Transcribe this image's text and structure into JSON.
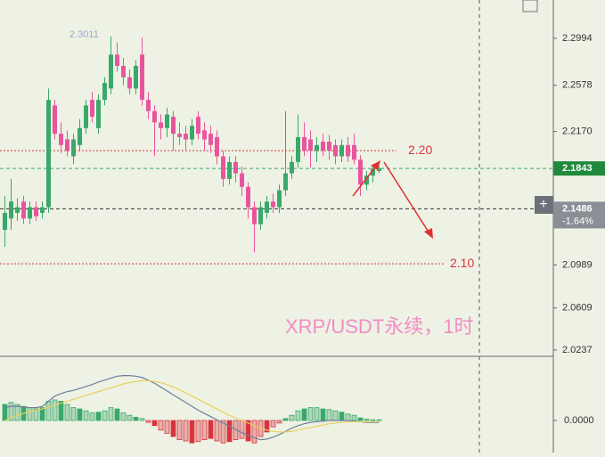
{
  "chart_data": [
    {
      "type": "candlestick",
      "title": "XRP/USDT永续，1时",
      "up_color": "#3aa86a",
      "down_color": "#e8559e",
      "ylim": [
        2.0181,
        2.3333
      ],
      "yticks": [
        2.2994,
        2.2578,
        {
          "value": 2.217,
          "label": "2.2170"
        },
        2.0989,
        2.0609,
        2.0237
      ],
      "high_label": 2.3011,
      "levels": [
        {
          "value": 2.2,
          "label": "2.20",
          "color": "#d9343e"
        },
        {
          "value": 2.1,
          "label": "2.10",
          "color": "#d9343e"
        }
      ],
      "price_tags": [
        {
          "value": 2.1843,
          "color": "#1f8a3c"
        },
        {
          "value": 2.1486,
          "color": "#8a8f96",
          "change": {
            "value": -1.64,
            "label": "-1.64%"
          }
        }
      ],
      "ohlc": [
        [
          2.13,
          2.16,
          2.115,
          2.145
        ],
        [
          2.14,
          2.175,
          2.13,
          2.155
        ],
        [
          2.145,
          2.158,
          2.138,
          2.15
        ],
        [
          2.155,
          2.16,
          2.135,
          2.14
        ],
        [
          2.14,
          2.155,
          2.135,
          2.15
        ],
        [
          2.15,
          2.155,
          2.138,
          2.142
        ],
        [
          2.145,
          2.155,
          2.14,
          2.15
        ],
        [
          2.15,
          2.255,
          2.145,
          2.245
        ],
        [
          2.24,
          2.245,
          2.21,
          2.215
        ],
        [
          2.215,
          2.225,
          2.198,
          2.205
        ],
        [
          2.21,
          2.218,
          2.195,
          2.2
        ],
        [
          2.195,
          2.215,
          2.188,
          2.21
        ],
        [
          2.205,
          2.228,
          2.2,
          2.22
        ],
        [
          2.22,
          2.245,
          2.215,
          2.24
        ],
        [
          2.245,
          2.252,
          2.225,
          2.23
        ],
        [
          2.22,
          2.25,
          2.215,
          2.245
        ],
        [
          2.245,
          2.265,
          2.24,
          2.26
        ],
        [
          2.255,
          2.3011,
          2.25,
          2.285
        ],
        [
          2.285,
          2.296,
          2.27,
          2.275
        ],
        [
          2.275,
          2.282,
          2.258,
          2.265
        ],
        [
          2.265,
          2.272,
          2.25,
          2.255
        ],
        [
          2.255,
          2.28,
          2.25,
          2.275
        ],
        [
          2.285,
          2.3,
          2.24,
          2.245
        ],
        [
          2.245,
          2.252,
          2.228,
          2.235
        ],
        [
          2.235,
          2.24,
          2.195,
          2.225
        ],
        [
          2.225,
          2.232,
          2.21,
          2.22
        ],
        [
          2.22,
          2.238,
          2.212,
          2.232
        ],
        [
          2.23,
          2.235,
          2.2,
          2.215
        ],
        [
          2.215,
          2.225,
          2.205,
          2.212
        ],
        [
          2.215,
          2.222,
          2.2,
          2.21
        ],
        [
          2.21,
          2.228,
          2.205,
          2.222
        ],
        [
          2.23,
          2.235,
          2.21,
          2.215
        ],
        [
          2.218,
          2.225,
          2.2,
          2.21
        ],
        [
          2.215,
          2.222,
          2.198,
          2.205
        ],
        [
          2.212,
          2.218,
          2.188,
          2.195
        ],
        [
          2.195,
          2.2,
          2.168,
          2.175
        ],
        [
          2.175,
          2.195,
          2.17,
          2.19
        ],
        [
          2.19,
          2.195,
          2.172,
          2.18
        ],
        [
          2.18,
          2.186,
          2.16,
          2.168
        ],
        [
          2.168,
          2.172,
          2.14,
          2.15
        ],
        [
          2.15,
          2.155,
          2.11,
          2.135
        ],
        [
          2.135,
          2.155,
          2.13,
          2.15
        ],
        [
          2.145,
          2.16,
          2.14,
          2.155
        ],
        [
          2.155,
          2.162,
          2.145,
          2.15
        ],
        [
          2.15,
          2.17,
          2.145,
          2.165
        ],
        [
          2.165,
          2.235,
          2.16,
          2.18
        ],
        [
          2.18,
          2.195,
          2.175,
          2.19
        ],
        [
          2.19,
          2.232,
          2.185,
          2.212
        ],
        [
          2.212,
          2.225,
          2.195,
          2.2
        ],
        [
          2.21,
          2.218,
          2.185,
          2.2
        ],
        [
          2.2,
          2.212,
          2.19,
          2.205
        ],
        [
          2.208,
          2.215,
          2.195,
          2.2
        ],
        [
          2.208,
          2.214,
          2.192,
          2.2
        ],
        [
          2.205,
          2.21,
          2.188,
          2.195
        ],
        [
          2.195,
          2.21,
          2.19,
          2.205
        ],
        [
          2.205,
          2.212,
          2.19,
          2.195
        ],
        [
          2.205,
          2.215,
          2.188,
          2.192
        ],
        [
          2.192,
          2.196,
          2.16,
          2.17
        ],
        [
          2.17,
          2.182,
          2.165,
          2.178
        ],
        [
          2.178,
          2.188,
          2.172,
          2.184
        ],
        [
          2.182,
          2.186,
          2.18,
          2.1843
        ]
      ]
    },
    {
      "type": "macd",
      "ylim": [
        -0.005,
        0.01
      ],
      "yticks": [
        {
          "value": 0,
          "label": "0.0000"
        }
      ],
      "up_color": "#3aa86a",
      "down_color": "#d9343e",
      "histogram": [
        0.0025,
        0.0028,
        0.0025,
        0.0022,
        0.002,
        0.0018,
        0.002,
        0.003,
        0.0032,
        0.003,
        0.0025,
        0.002,
        0.0018,
        0.0015,
        0.0012,
        0.0013,
        0.0015,
        0.002,
        0.0018,
        0.0012,
        0.0008,
        0.0005,
        0.0003,
        -0.0003,
        -0.0008,
        -0.0015,
        -0.002,
        -0.0025,
        -0.003,
        -0.0032,
        -0.0035,
        -0.0033,
        -0.003,
        -0.0028,
        -0.0032,
        -0.0035,
        -0.0033,
        -0.003,
        -0.0028,
        -0.0032,
        -0.0035,
        -0.0025,
        -0.0018,
        -0.001,
        -0.0004,
        0.0003,
        0.0008,
        0.0015,
        0.0018,
        0.002,
        0.002,
        0.0018,
        0.0017,
        0.0015,
        0.0013,
        0.001,
        0.0008,
        0.0004,
        0.0002,
        0.0001,
        0.0001
      ],
      "series": [
        {
          "color": "#6f7f9c",
          "values": [
            0.002,
            0.0022,
            0.0022,
            0.0021,
            0.002,
            0.002,
            0.0022,
            0.003,
            0.0038,
            0.0042,
            0.0045,
            0.0047,
            0.005,
            0.0053,
            0.0056,
            0.006,
            0.0063,
            0.0066,
            0.0069,
            0.007,
            0.007,
            0.0069,
            0.0067,
            0.0063,
            0.0058,
            0.0052,
            0.0046,
            0.004,
            0.0034,
            0.0028,
            0.0022,
            0.0016,
            0.0011,
            0.0006,
            0.0001,
            -0.0004,
            -0.0009,
            -0.0014,
            -0.0019,
            -0.0023,
            -0.0027,
            -0.003,
            -0.0029,
            -0.0026,
            -0.0022,
            -0.0017,
            -0.0012,
            -0.0008,
            -0.0005,
            -0.0003,
            -0.0002,
            -0.0001,
            0.0,
            0.0,
            0.0,
            0.0,
            -0.0001,
            -0.0002,
            -0.0003,
            -0.0003,
            -0.0003
          ]
        },
        {
          "color": "#e8d25a",
          "values": [
            0.0,
            0.0004,
            0.0008,
            0.0011,
            0.0014,
            0.0016,
            0.0018,
            0.0021,
            0.0024,
            0.0027,
            0.003,
            0.0033,
            0.0036,
            0.0039,
            0.0042,
            0.0045,
            0.0048,
            0.0051,
            0.0054,
            0.0057,
            0.0059,
            0.0061,
            0.0062,
            0.0062,
            0.0061,
            0.0059,
            0.0056,
            0.0052,
            0.0048,
            0.0043,
            0.0038,
            0.0033,
            0.0028,
            0.0023,
            0.0018,
            0.0013,
            0.0008,
            0.0004,
            0.0,
            -0.0004,
            -0.0008,
            -0.0012,
            -0.0015,
            -0.0017,
            -0.0018,
            -0.0018,
            -0.0017,
            -0.0015,
            -0.0013,
            -0.0011,
            -0.0009,
            -0.0007,
            -0.0005,
            -0.0004,
            -0.0003,
            -0.0002,
            -0.0002,
            -0.0002,
            -0.0002,
            -0.0002,
            -0.0002
          ]
        }
      ]
    }
  ]
}
